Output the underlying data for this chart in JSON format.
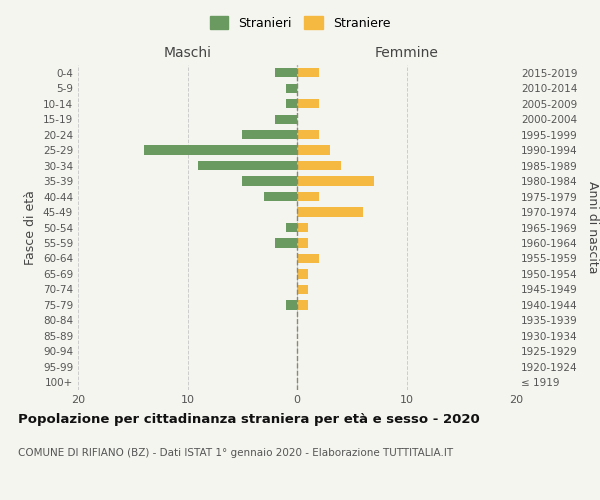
{
  "age_groups": [
    "100+",
    "95-99",
    "90-94",
    "85-89",
    "80-84",
    "75-79",
    "70-74",
    "65-69",
    "60-64",
    "55-59",
    "50-54",
    "45-49",
    "40-44",
    "35-39",
    "30-34",
    "25-29",
    "20-24",
    "15-19",
    "10-14",
    "5-9",
    "0-4"
  ],
  "birth_years": [
    "≤ 1919",
    "1920-1924",
    "1925-1929",
    "1930-1934",
    "1935-1939",
    "1940-1944",
    "1945-1949",
    "1950-1954",
    "1955-1959",
    "1960-1964",
    "1965-1969",
    "1970-1974",
    "1975-1979",
    "1980-1984",
    "1985-1989",
    "1990-1994",
    "1995-1999",
    "2000-2004",
    "2005-2009",
    "2010-2014",
    "2015-2019"
  ],
  "stranieri": [
    0,
    0,
    0,
    0,
    0,
    1,
    0,
    0,
    0,
    2,
    1,
    0,
    3,
    5,
    9,
    14,
    5,
    2,
    1,
    1,
    2
  ],
  "straniere": [
    0,
    0,
    0,
    0,
    0,
    1,
    1,
    1,
    2,
    1,
    1,
    6,
    2,
    7,
    4,
    3,
    2,
    0,
    2,
    0,
    2
  ],
  "stranieri_color": "#6a9a5f",
  "straniere_color": "#f5b942",
  "title": "Popolazione per cittadinanza straniera per età e sesso - 2020",
  "subtitle": "COMUNE DI RIFIANO (BZ) - Dati ISTAT 1° gennaio 2020 - Elaborazione TUTTITALIA.IT",
  "xlabel_left": "Maschi",
  "xlabel_right": "Femmine",
  "ylabel_left": "Fasce di età",
  "ylabel_right": "Anni di nascita",
  "xlim": 20,
  "background_color": "#f5f5f0",
  "grid_color": "#cccccc",
  "legend_stranieri": "Stranieri",
  "legend_straniere": "Straniere"
}
